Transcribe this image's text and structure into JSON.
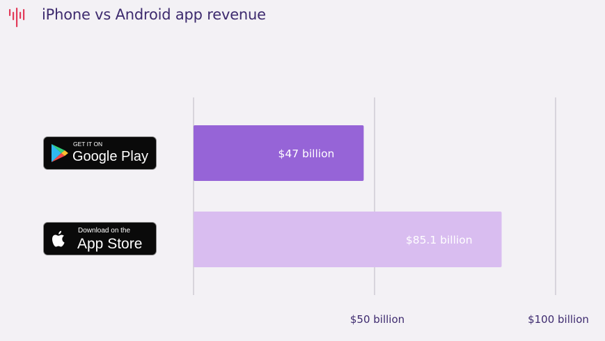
{
  "header": {
    "title": "iPhone vs Android app revenue",
    "logo_icon": "bar-wave-logo-icon"
  },
  "badges": {
    "google_play": {
      "small": "GET IT ON",
      "large": "Google Play",
      "icon": "google-play-icon"
    },
    "app_store": {
      "small": "Download on the",
      "large": "App Store",
      "icon": "apple-icon"
    }
  },
  "chart_data": {
    "type": "bar",
    "orientation": "horizontal",
    "title": "iPhone vs Android app revenue",
    "categories": [
      "Google Play",
      "App Store"
    ],
    "values": [
      47,
      85.1
    ],
    "data_labels": [
      "$47 billion",
      "$85.1 billion"
    ],
    "colors": [
      "#9664d7",
      "#d9bdf0"
    ],
    "xlim": [
      0,
      100
    ],
    "xticks": [
      0,
      50,
      100
    ],
    "xtick_labels": [
      "",
      "$50 billion",
      "$100 billion"
    ],
    "grid": true,
    "xlabel": "",
    "ylabel": ""
  }
}
